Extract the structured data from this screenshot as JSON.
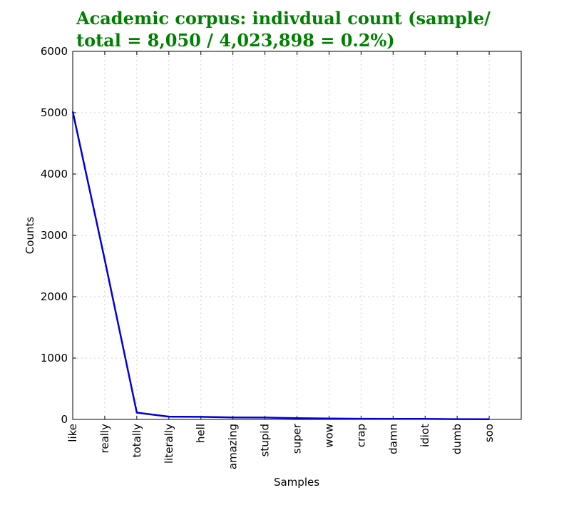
{
  "chart_data": {
    "type": "line",
    "title_line1": "Academic corpus: indivdual count (sample/",
    "title_line2": "total = 8,050 / 4,023,898 = 0.2%)",
    "xlabel": "Samples",
    "ylabel": "Counts",
    "categories": [
      "like",
      "really",
      "totally",
      "literally",
      "hell",
      "amazing",
      "stupid",
      "super",
      "wow",
      "crap",
      "damn",
      "idiot",
      "dumb",
      "soo"
    ],
    "values": [
      5020,
      2600,
      110,
      45,
      42,
      32,
      30,
      20,
      15,
      10,
      9,
      8,
      4,
      3
    ],
    "ylim": [
      0,
      6000
    ],
    "yticks": [
      "0",
      "1000",
      "2000",
      "3000",
      "4000",
      "5000",
      "6000"
    ],
    "ytick_values": [
      0,
      1000,
      2000,
      3000,
      4000,
      5000,
      6000
    ],
    "grid": true,
    "line_color": "#0000dd",
    "title_color": "#008000"
  }
}
